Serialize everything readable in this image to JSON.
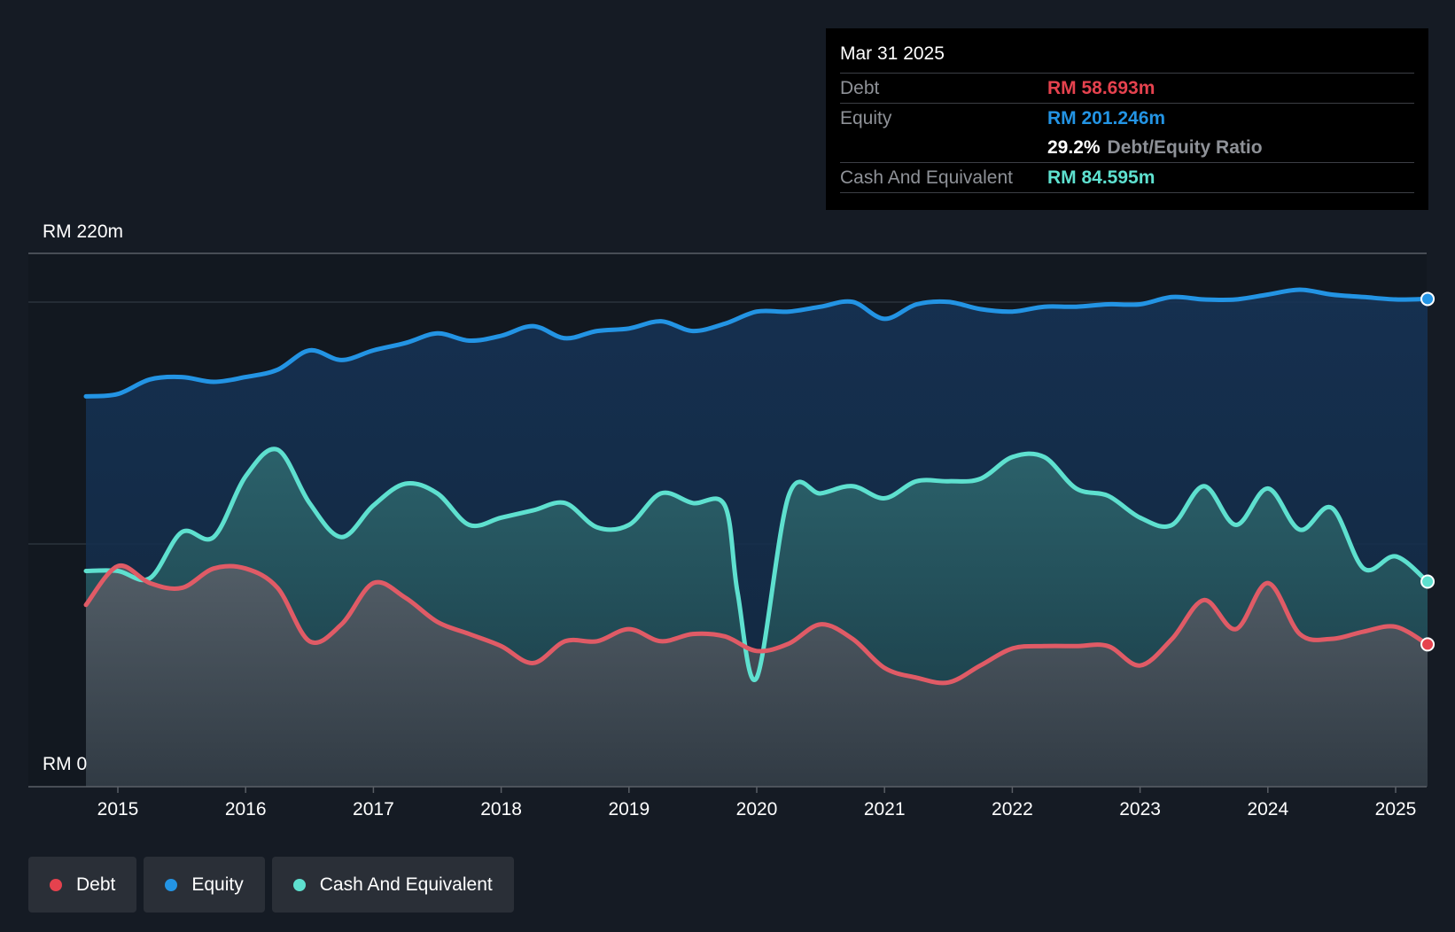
{
  "chart_data": {
    "type": "line",
    "y_unit_prefix": "RM",
    "ylim": [
      0,
      220
    ],
    "y_labels": {
      "top": "RM 220m",
      "bottom": "RM 0"
    },
    "x_ticks": [
      "2015",
      "2016",
      "2017",
      "2018",
      "2019",
      "2020",
      "2021",
      "2022",
      "2023",
      "2024",
      "2025"
    ],
    "x_range": [
      2014.75,
      2025.25
    ],
    "series": [
      {
        "name": "Equity",
        "color": "#2394e4",
        "points": [
          [
            2014.75,
            161
          ],
          [
            2015,
            162
          ],
          [
            2015.25,
            168
          ],
          [
            2015.5,
            169
          ],
          [
            2015.75,
            167
          ],
          [
            2016,
            169
          ],
          [
            2016.25,
            172
          ],
          [
            2016.5,
            180
          ],
          [
            2016.75,
            176
          ],
          [
            2017,
            180
          ],
          [
            2017.25,
            183
          ],
          [
            2017.5,
            187
          ],
          [
            2017.75,
            184
          ],
          [
            2018,
            186
          ],
          [
            2018.25,
            190
          ],
          [
            2018.5,
            185
          ],
          [
            2018.75,
            188
          ],
          [
            2019,
            189
          ],
          [
            2019.25,
            192
          ],
          [
            2019.5,
            188
          ],
          [
            2019.75,
            191
          ],
          [
            2020,
            196
          ],
          [
            2020.25,
            196
          ],
          [
            2020.5,
            198
          ],
          [
            2020.75,
            200
          ],
          [
            2021,
            193
          ],
          [
            2021.25,
            199
          ],
          [
            2021.5,
            200
          ],
          [
            2021.75,
            197
          ],
          [
            2022,
            196
          ],
          [
            2022.25,
            198
          ],
          [
            2022.5,
            198
          ],
          [
            2022.75,
            199
          ],
          [
            2023,
            199
          ],
          [
            2023.25,
            202
          ],
          [
            2023.5,
            201
          ],
          [
            2023.75,
            201
          ],
          [
            2024,
            203
          ],
          [
            2024.25,
            205
          ],
          [
            2024.5,
            203
          ],
          [
            2024.75,
            202
          ],
          [
            2025,
            201
          ],
          [
            2025.25,
            201.2
          ]
        ]
      },
      {
        "name": "Cash And Equivalent",
        "color": "#5ee0cf",
        "points": [
          [
            2014.75,
            89
          ],
          [
            2015,
            89
          ],
          [
            2015.25,
            86
          ],
          [
            2015.5,
            105
          ],
          [
            2015.75,
            103
          ],
          [
            2016,
            128
          ],
          [
            2016.25,
            139
          ],
          [
            2016.5,
            117
          ],
          [
            2016.75,
            103
          ],
          [
            2017,
            116
          ],
          [
            2017.25,
            125
          ],
          [
            2017.5,
            121
          ],
          [
            2017.75,
            108
          ],
          [
            2018,
            111
          ],
          [
            2018.25,
            114
          ],
          [
            2018.5,
            117
          ],
          [
            2018.75,
            107
          ],
          [
            2019,
            108
          ],
          [
            2019.25,
            121
          ],
          [
            2019.5,
            117
          ],
          [
            2019.75,
            116
          ],
          [
            2019.85,
            80
          ],
          [
            2020,
            45
          ],
          [
            2020.25,
            120
          ],
          [
            2020.5,
            121
          ],
          [
            2020.75,
            124
          ],
          [
            2021,
            119
          ],
          [
            2021.25,
            126
          ],
          [
            2021.5,
            126
          ],
          [
            2021.75,
            127
          ],
          [
            2022,
            136
          ],
          [
            2022.25,
            136
          ],
          [
            2022.5,
            123
          ],
          [
            2022.75,
            120
          ],
          [
            2023,
            111
          ],
          [
            2023.25,
            108
          ],
          [
            2023.5,
            124
          ],
          [
            2023.75,
            108
          ],
          [
            2024,
            123
          ],
          [
            2024.25,
            106
          ],
          [
            2024.5,
            115
          ],
          [
            2024.75,
            90
          ],
          [
            2025,
            95
          ],
          [
            2025.25,
            84.6
          ]
        ]
      },
      {
        "name": "Debt",
        "color": "#e05b66",
        "points": [
          [
            2014.75,
            75
          ],
          [
            2015,
            91
          ],
          [
            2015.25,
            84
          ],
          [
            2015.5,
            82
          ],
          [
            2015.75,
            90
          ],
          [
            2016,
            90
          ],
          [
            2016.25,
            82
          ],
          [
            2016.5,
            60
          ],
          [
            2016.75,
            67
          ],
          [
            2017,
            84
          ],
          [
            2017.25,
            78
          ],
          [
            2017.5,
            68
          ],
          [
            2017.75,
            63
          ],
          [
            2018,
            58
          ],
          [
            2018.25,
            51
          ],
          [
            2018.5,
            60
          ],
          [
            2018.75,
            60
          ],
          [
            2019,
            65
          ],
          [
            2019.25,
            60
          ],
          [
            2019.5,
            63
          ],
          [
            2019.75,
            62
          ],
          [
            2020,
            56
          ],
          [
            2020.25,
            59
          ],
          [
            2020.5,
            67
          ],
          [
            2020.75,
            61
          ],
          [
            2021,
            49
          ],
          [
            2021.25,
            45
          ],
          [
            2021.5,
            43
          ],
          [
            2021.75,
            50
          ],
          [
            2022,
            57
          ],
          [
            2022.25,
            58
          ],
          [
            2022.5,
            58
          ],
          [
            2022.75,
            58
          ],
          [
            2023,
            50
          ],
          [
            2023.25,
            61
          ],
          [
            2023.5,
            77
          ],
          [
            2023.75,
            65
          ],
          [
            2024,
            84
          ],
          [
            2024.25,
            63
          ],
          [
            2024.5,
            61
          ],
          [
            2024.75,
            64
          ],
          [
            2025,
            66
          ],
          [
            2025.25,
            58.7
          ]
        ]
      }
    ]
  },
  "tooltip": {
    "date": "Mar 31 2025",
    "debt_label": "Debt",
    "debt_value": "RM 58.693m",
    "equity_label": "Equity",
    "equity_value": "RM 201.246m",
    "ratio_value": "29.2%",
    "ratio_label": "Debt/Equity Ratio",
    "cash_label": "Cash And Equivalent",
    "cash_value": "RM 84.595m"
  },
  "legend": [
    {
      "label": "Debt",
      "color": "#e5424e"
    },
    {
      "label": "Equity",
      "color": "#2394e4"
    },
    {
      "label": "Cash And Equivalent",
      "color": "#5ee0cf"
    }
  ],
  "colors": {
    "debt": "#e5424e",
    "equity": "#2394e4",
    "cash": "#5ee0cf",
    "background": "#151b24"
  }
}
